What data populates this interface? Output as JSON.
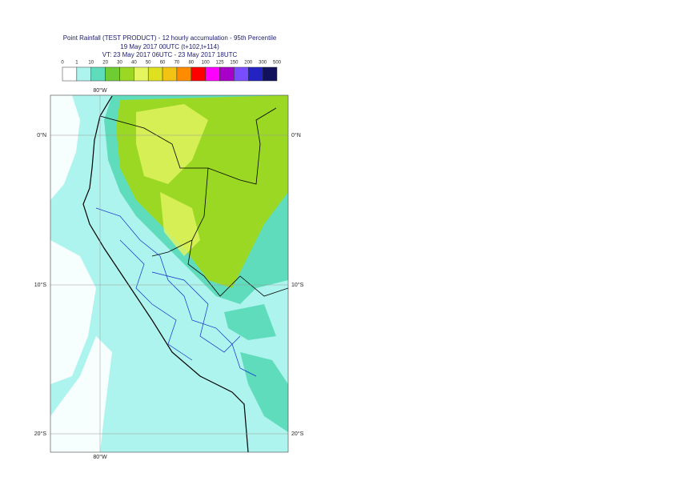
{
  "header": {
    "title": "Point Rainfall (TEST PRODUCT) - 12 hourly accumulation - 95th Percentile",
    "base_time": "19 May 2017 00UTC (t+102,t+114)",
    "valid_time": "VT: 23 May 2017 06UTC - 23 May 2017 18UTC"
  },
  "legend": {
    "labels": [
      "0",
      "1",
      "10",
      "20",
      "30",
      "40",
      "50",
      "60",
      "70",
      "80",
      "100",
      "125",
      "150",
      "200",
      "300",
      "500"
    ],
    "colors": [
      "#ffffff",
      "#aef4ee",
      "#5fdcbc",
      "#6fcc33",
      "#9ad824",
      "#e4f560",
      "#dfe020",
      "#f2c313",
      "#ff8c00",
      "#ff0000",
      "#ff00ff",
      "#a800c8",
      "#7a4cff",
      "#2323c4",
      "#11115e"
    ]
  },
  "map": {
    "lon_label_top": "80°W",
    "lon_label_bottom": "80°W",
    "lat_labels_left": [
      "0°N",
      "10°S",
      "20°S"
    ],
    "lat_labels_right": [
      "0°N",
      "10°S",
      "20°S"
    ]
  }
}
